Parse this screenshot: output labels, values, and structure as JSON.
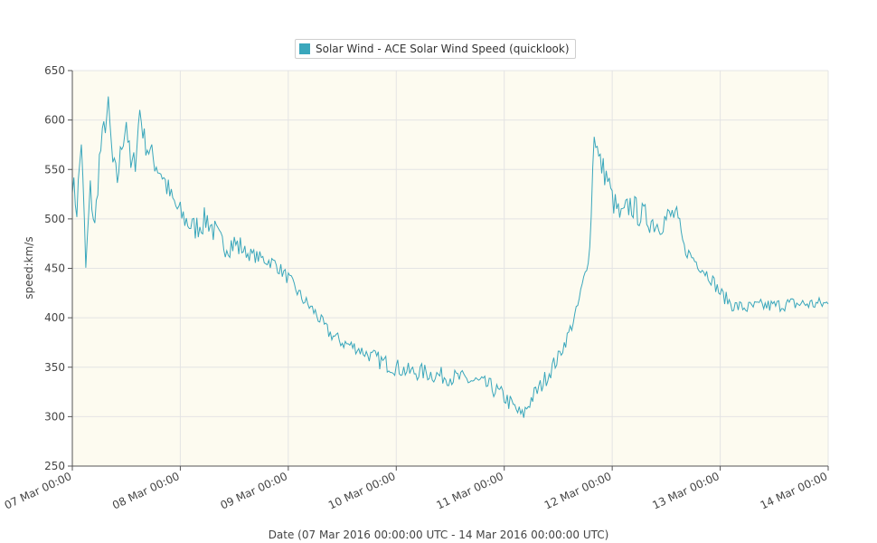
{
  "chart_data": {
    "type": "line",
    "title": "",
    "xlabel": "Date (07 Mar 2016 00:00:00 UTC - 14 Mar 2016 00:00:00 UTC)",
    "ylabel": "speed:km/s",
    "ylim": [
      250,
      650
    ],
    "yticks": [
      250,
      300,
      350,
      400,
      450,
      500,
      550,
      600,
      650
    ],
    "xlim": [
      "2016-03-07 00:00",
      "2016-03-14 00:00"
    ],
    "xtick_labels": [
      "07 Mar 00:00",
      "08 Mar 00:00",
      "09 Mar 00:00",
      "10 Mar 00:00",
      "11 Mar 00:00",
      "12 Mar 00:00",
      "13 Mar 00:00",
      "14 Mar 00:00"
    ],
    "grid": true,
    "legend_position": "top-center",
    "background_color": "#fdfbf0",
    "series": [
      {
        "name": "Solar Wind - ACE Solar Wind Speed (quicklook)",
        "color": "#3aa7bc",
        "x": [
          "2016-03-07 00:00",
          "2016-03-07 01:00",
          "2016-03-07 02:00",
          "2016-03-07 03:00",
          "2016-03-07 04:00",
          "2016-03-07 05:00",
          "2016-03-07 06:00",
          "2016-03-07 07:00",
          "2016-03-07 08:00",
          "2016-03-07 09:00",
          "2016-03-07 10:00",
          "2016-03-07 11:00",
          "2016-03-07 12:00",
          "2016-03-07 13:00",
          "2016-03-07 14:00",
          "2016-03-07 15:00",
          "2016-03-07 16:00",
          "2016-03-07 18:00",
          "2016-03-07 20:00",
          "2016-03-07 22:00",
          "2016-03-08 00:00",
          "2016-03-08 03:00",
          "2016-03-08 06:00",
          "2016-03-08 09:00",
          "2016-03-08 12:00",
          "2016-03-08 15:00",
          "2016-03-08 18:00",
          "2016-03-08 21:00",
          "2016-03-09 00:00",
          "2016-03-09 03:00",
          "2016-03-09 06:00",
          "2016-03-09 09:00",
          "2016-03-09 12:00",
          "2016-03-09 15:00",
          "2016-03-09 18:00",
          "2016-03-09 21:00",
          "2016-03-10 00:00",
          "2016-03-10 03:00",
          "2016-03-10 06:00",
          "2016-03-10 09:00",
          "2016-03-10 12:00",
          "2016-03-10 15:00",
          "2016-03-10 18:00",
          "2016-03-10 21:00",
          "2016-03-11 00:00",
          "2016-03-11 02:00",
          "2016-03-11 04:00",
          "2016-03-11 06:00",
          "2016-03-11 08:00",
          "2016-03-11 10:00",
          "2016-03-11 12:00",
          "2016-03-11 14:00",
          "2016-03-11 16:00",
          "2016-03-11 18:00",
          "2016-03-11 19:00",
          "2016-03-11 20:00",
          "2016-03-11 21:00",
          "2016-03-11 22:00",
          "2016-03-11 23:00",
          "2016-03-12 00:00",
          "2016-03-12 02:00",
          "2016-03-12 04:00",
          "2016-03-12 06:00",
          "2016-03-12 08:00",
          "2016-03-12 10:00",
          "2016-03-12 12:00",
          "2016-03-12 14:00",
          "2016-03-12 16:00",
          "2016-03-12 18:00",
          "2016-03-12 20:00",
          "2016-03-12 22:00",
          "2016-03-13 00:00",
          "2016-03-13 03:00",
          "2016-03-13 06:00",
          "2016-03-13 09:00",
          "2016-03-13 12:00",
          "2016-03-13 15:00",
          "2016-03-13 18:00",
          "2016-03-13 21:00",
          "2016-03-14 00:00"
        ],
        "y": [
          540,
          510,
          580,
          450,
          530,
          490,
          560,
          590,
          612,
          555,
          540,
          575,
          600,
          550,
          560,
          610,
          580,
          560,
          545,
          520,
          505,
          490,
          500,
          475,
          475,
          465,
          460,
          455,
          440,
          420,
          405,
          385,
          375,
          370,
          362,
          355,
          350,
          345,
          345,
          342,
          340,
          338,
          335,
          330,
          320,
          310,
          300,
          318,
          330,
          345,
          360,
          380,
          405,
          445,
          470,
          590,
          560,
          550,
          540,
          520,
          500,
          515,
          505,
          500,
          495,
          500,
          505,
          470,
          460,
          450,
          440,
          425,
          412,
          410,
          412,
          412,
          414,
          414,
          414,
          414
        ]
      }
    ]
  }
}
